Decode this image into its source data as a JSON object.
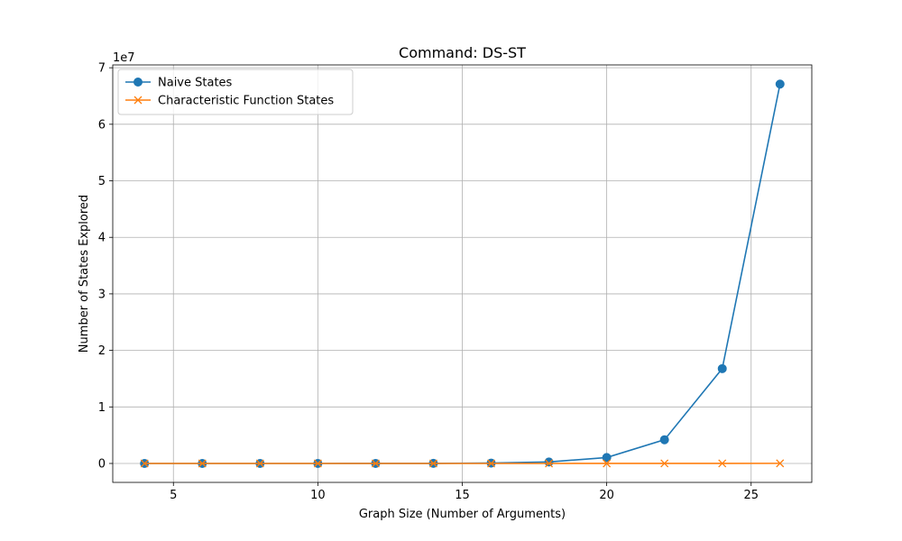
{
  "chart_data": {
    "type": "line",
    "title": "Command: DS-ST",
    "xlabel": "Graph Size (Number of Arguments)",
    "ylabel": "Number of States Explored",
    "y_offset_label": "1e7",
    "x": [
      4,
      6,
      8,
      10,
      12,
      14,
      16,
      18,
      20,
      22,
      24,
      26
    ],
    "xlim": [
      2.9,
      27.1
    ],
    "ylim": [
      -3350000,
      70500000
    ],
    "x_ticks": [
      5,
      10,
      15,
      20,
      25
    ],
    "x_tick_labels": [
      "5",
      "10",
      "15",
      "20",
      "25"
    ],
    "y_ticks": [
      0,
      10000000,
      20000000,
      30000000,
      40000000,
      50000000,
      60000000,
      70000000
    ],
    "y_tick_labels": [
      "0",
      "1",
      "2",
      "3",
      "4",
      "5",
      "6",
      "7"
    ],
    "grid": true,
    "legend_position": "top-left",
    "series": [
      {
        "name": "Naive States",
        "marker": "circle",
        "color": "#1f77b4",
        "values": [
          16,
          64,
          256,
          1024,
          4096,
          16384,
          65536,
          262144,
          1048576,
          4194304,
          16777216,
          67108864
        ]
      },
      {
        "name": "Characteristic Function States",
        "marker": "x",
        "color": "#ff7f0e",
        "values": [
          10,
          20,
          40,
          80,
          160,
          320,
          640,
          1280,
          2560,
          5120,
          10240,
          20480
        ]
      }
    ]
  }
}
